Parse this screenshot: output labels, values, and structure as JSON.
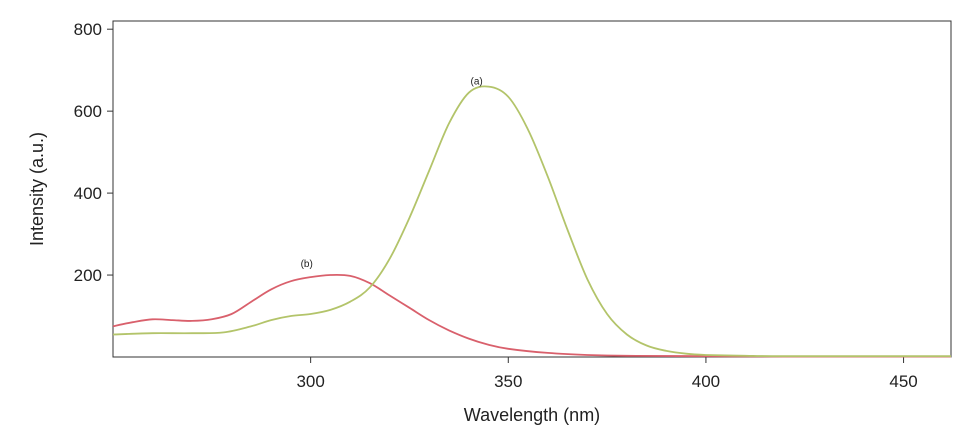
{
  "chart_data": {
    "type": "line",
    "title": "",
    "xlabel": "Wavelength (nm)",
    "ylabel": "Intensity (a.u.)",
    "xlim": [
      250,
      462
    ],
    "ylim": [
      0,
      820
    ],
    "x_ticks": [
      300,
      350,
      400,
      450
    ],
    "y_ticks": [
      200,
      400,
      600,
      800
    ],
    "x_tick_labels": [
      "300",
      "350",
      "400",
      "450"
    ],
    "y_tick_labels": [
      "200",
      "400",
      "600",
      "800"
    ],
    "grid": false,
    "colors": {
      "a": "#b3c46a",
      "b": "#d9606c"
    },
    "series": [
      {
        "name": "(a)",
        "x": [
          250,
          260,
          270,
          278,
          285,
          290,
          295,
          300,
          305,
          310,
          315,
          320,
          325,
          330,
          335,
          340,
          345,
          350,
          355,
          360,
          365,
          370,
          375,
          380,
          385,
          390,
          395,
          400,
          410,
          420,
          462
        ],
        "y": [
          55,
          58,
          58,
          60,
          75,
          90,
          100,
          105,
          115,
          135,
          170,
          240,
          340,
          455,
          570,
          645,
          660,
          635,
          555,
          440,
          310,
          190,
          105,
          55,
          28,
          15,
          8,
          5,
          3,
          2,
          2
        ]
      },
      {
        "name": "(b)",
        "x": [
          250,
          255,
          260,
          265,
          270,
          275,
          280,
          285,
          290,
          295,
          300,
          305,
          310,
          315,
          320,
          325,
          330,
          335,
          340,
          345,
          350,
          360,
          370,
          380,
          400,
          420,
          462
        ],
        "y": [
          75,
          85,
          92,
          90,
          88,
          92,
          105,
          135,
          165,
          185,
          195,
          200,
          198,
          180,
          150,
          120,
          90,
          65,
          45,
          30,
          20,
          10,
          5,
          3,
          2,
          1,
          1
        ]
      }
    ],
    "annotations": [
      {
        "text": "(a)",
        "x": 342,
        "y": 665
      },
      {
        "text": "(b)",
        "x": 299,
        "y": 220
      }
    ]
  }
}
